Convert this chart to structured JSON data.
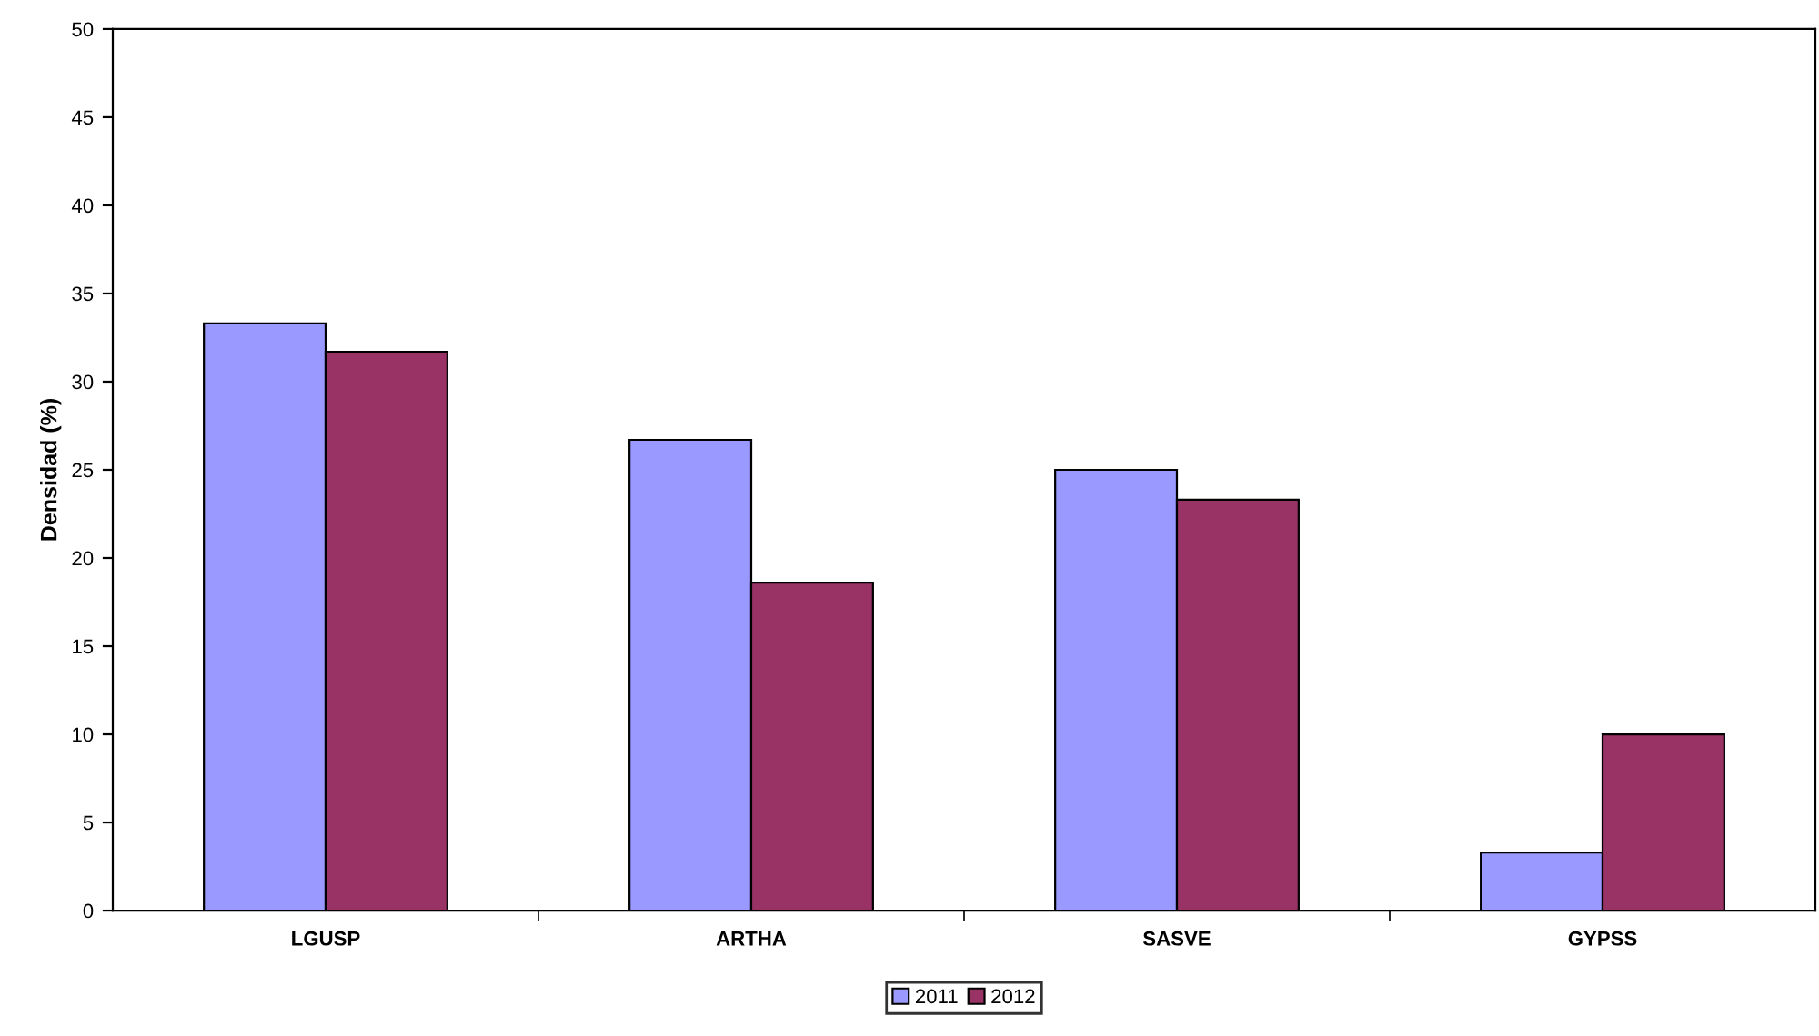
{
  "chart_data": {
    "type": "bar",
    "ylabel": "Densidad (%)",
    "categories": [
      "LGUSP",
      "ARTHA",
      "SASVE",
      "GYPSS"
    ],
    "series": [
      {
        "name": "2011",
        "color": "#9999ff",
        "values": [
          33.3,
          26.7,
          25.0,
          3.3
        ]
      },
      {
        "name": "2012",
        "color": "#993366",
        "values": [
          31.7,
          18.6,
          23.3,
          10.0
        ]
      }
    ],
    "ylim": [
      0,
      50
    ],
    "yticks": [
      0,
      5,
      10,
      15,
      20,
      25,
      30,
      35,
      40,
      45,
      50
    ],
    "grid": false,
    "legend": "bottom"
  }
}
